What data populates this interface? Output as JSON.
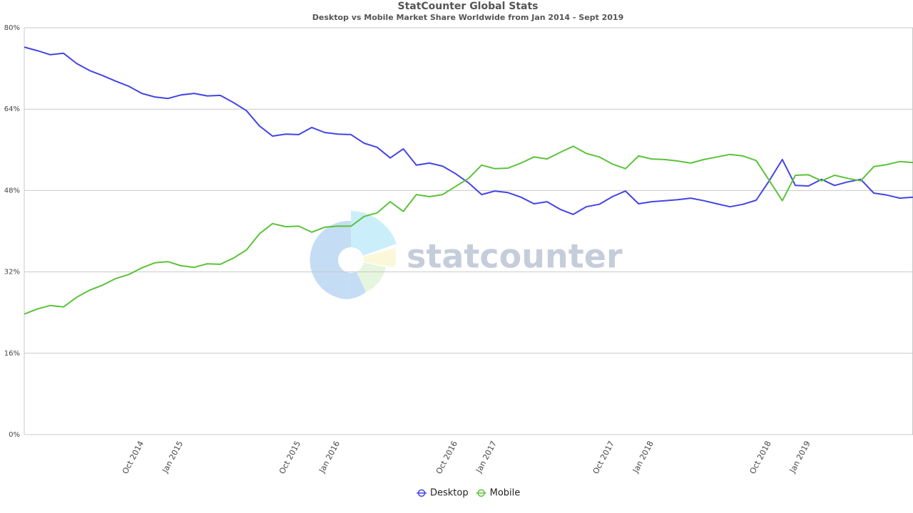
{
  "chart_data": {
    "type": "line",
    "title": "StatCounter Global Stats",
    "subtitle": "Desktop vs Mobile Market Share Worldwide from Jan 2014 - Sept 2019",
    "watermark": "statcounter",
    "categories": [
      null,
      null,
      null,
      null,
      null,
      null,
      null,
      null,
      null,
      "Oct 2014",
      null,
      null,
      "Jan 2015",
      null,
      null,
      null,
      null,
      null,
      null,
      null,
      null,
      "Oct 2015",
      null,
      null,
      "Jan 2016",
      null,
      null,
      null,
      null,
      null,
      null,
      null,
      null,
      "Oct 2016",
      null,
      null,
      "Jan 2017",
      null,
      null,
      null,
      null,
      null,
      null,
      null,
      null,
      "Oct 2017",
      null,
      null,
      "Jan 2018",
      null,
      null,
      null,
      null,
      null,
      null,
      null,
      null,
      "Oct 2018",
      null,
      null,
      "Jan 2019",
      null,
      null,
      null,
      null,
      null,
      null,
      null,
      null
    ],
    "series": [
      {
        "name": "Desktop",
        "color": "#4444e6",
        "values": [
          76.2,
          75.5,
          74.7,
          75.0,
          73.0,
          71.6,
          70.6,
          69.5,
          68.5,
          67.1,
          66.4,
          66.1,
          66.8,
          67.1,
          66.6,
          66.7,
          65.3,
          63.7,
          60.7,
          58.7,
          59.1,
          59.0,
          60.4,
          59.4,
          59.1,
          59.0,
          57.3,
          56.5,
          54.4,
          56.2,
          53.0,
          53.4,
          52.8,
          51.3,
          49.5,
          47.2,
          47.9,
          47.6,
          46.7,
          45.4,
          45.8,
          44.3,
          43.3,
          44.8,
          45.3,
          46.8,
          47.9,
          45.4,
          45.8,
          46.0,
          46.2,
          46.5,
          46.0,
          45.4,
          44.8,
          45.3,
          46.1,
          49.9,
          54.1,
          49.0,
          48.9,
          50.2,
          49.0,
          49.7,
          50.2,
          47.5,
          47.1,
          46.5,
          46.7
        ]
      },
      {
        "name": "Mobile",
        "color": "#5cc23a",
        "values": [
          23.7,
          24.7,
          25.4,
          25.1,
          27.0,
          28.4,
          29.4,
          30.7,
          31.5,
          32.8,
          33.8,
          34.0,
          33.2,
          32.9,
          33.6,
          33.5,
          34.7,
          36.3,
          39.5,
          41.5,
          40.9,
          41.0,
          39.8,
          40.8,
          41.0,
          41.0,
          42.9,
          43.6,
          45.8,
          43.9,
          47.2,
          46.8,
          47.2,
          48.8,
          50.4,
          53.0,
          52.3,
          52.4,
          53.4,
          54.6,
          54.2,
          55.5,
          56.7,
          55.3,
          54.6,
          53.2,
          52.3,
          54.8,
          54.2,
          54.1,
          53.8,
          53.4,
          54.1,
          54.6,
          55.1,
          54.8,
          53.9,
          50.0,
          46.0,
          51.0,
          51.1,
          49.9,
          51.0,
          50.4,
          49.9,
          52.7,
          53.1,
          53.7,
          53.5
        ]
      }
    ],
    "ylim": [
      0,
      80
    ],
    "yticks": [
      {
        "value": 0,
        "label": "0%"
      },
      {
        "value": 16,
        "label": "16%"
      },
      {
        "value": 32,
        "label": "32%"
      },
      {
        "value": 48,
        "label": "48%"
      },
      {
        "value": 64,
        "label": "64%"
      },
      {
        "value": 80,
        "label": "80%"
      }
    ],
    "grid": true
  }
}
